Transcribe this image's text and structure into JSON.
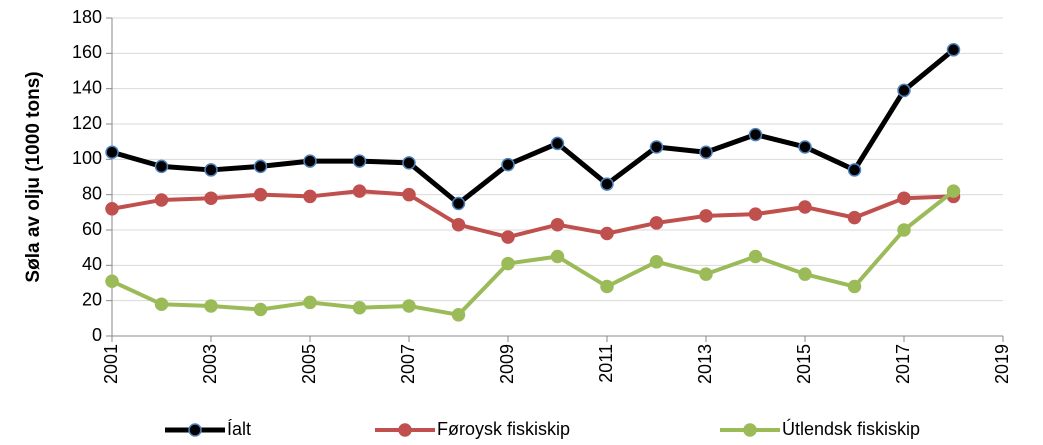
{
  "chart_data": {
    "type": "line",
    "ylabel": "Søla av olju (1000 tons)",
    "x": [
      2001,
      2002,
      2003,
      2004,
      2005,
      2006,
      2007,
      2008,
      2009,
      2010,
      2011,
      2012,
      2013,
      2014,
      2015,
      2016,
      2017,
      2018
    ],
    "series": [
      {
        "name": "Íalt",
        "color": "#000000",
        "marker_edge": "#4f81bd",
        "values": [
          104,
          96,
          94,
          96,
          99,
          99,
          98,
          75,
          97,
          109,
          86,
          107,
          104,
          114,
          107,
          94,
          139,
          162
        ]
      },
      {
        "name": "Føroysk fiskiskip",
        "color": "#c0504d",
        "values": [
          72,
          77,
          78,
          80,
          79,
          82,
          80,
          63,
          56,
          63,
          58,
          64,
          68,
          69,
          73,
          67,
          78,
          79
        ]
      },
      {
        "name": "Útlendsk fiskiskip",
        "color": "#9bbb59",
        "values": [
          31,
          18,
          17,
          15,
          19,
          16,
          17,
          12,
          41,
          45,
          28,
          42,
          35,
          45,
          35,
          28,
          60,
          82
        ]
      }
    ],
    "xlim": [
      2001,
      2019
    ],
    "xticks": [
      2001,
      2003,
      2005,
      2007,
      2009,
      2011,
      2013,
      2015,
      2017,
      2019
    ],
    "ylim": [
      0,
      180
    ],
    "yticks": [
      0,
      20,
      40,
      60,
      80,
      100,
      120,
      140,
      160,
      180
    ],
    "grid": true,
    "legend": "bottom"
  }
}
